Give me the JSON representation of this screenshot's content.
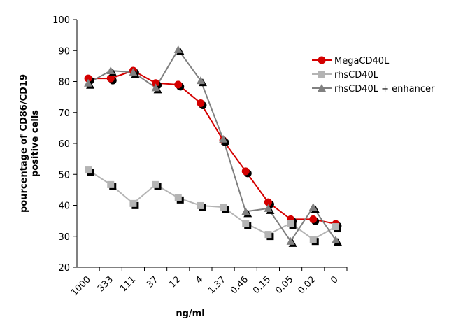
{
  "chart_data": {
    "type": "line",
    "x_label": "ng/ml",
    "y_label": [
      "pourcentage of CD86/CD19",
      "positive cells"
    ],
    "categories": [
      "1000",
      "333",
      "111",
      "37",
      "12",
      "4",
      "1.37",
      "0.46",
      "0.15",
      "0.05",
      "0.02",
      "0"
    ],
    "series": [
      {
        "name": "MegaCD40L",
        "color": "#d40000",
        "marker": "circle",
        "values": [
          81,
          81,
          83.5,
          79.5,
          79,
          73,
          61,
          51,
          41,
          35.5,
          35.5,
          34
        ]
      },
      {
        "name": "rhsCD40L",
        "color": "#b4b4b4",
        "marker": "square",
        "values": [
          51.4,
          46.7,
          40.6,
          46.7,
          42.4,
          39.9,
          39.4,
          34.2,
          30.6,
          34.2,
          29,
          33.1
        ]
      },
      {
        "name": "rhsCD40L + enhancer",
        "color": "#808080",
        "marker": "triangle",
        "values": [
          79.5,
          83.5,
          83,
          78,
          90.3,
          80.3,
          61.4,
          38,
          39,
          28.4,
          39.4,
          28.8
        ]
      }
    ],
    "ylim": [
      20,
      100
    ],
    "yticks": [
      20,
      30,
      40,
      50,
      60,
      70,
      80,
      90,
      100
    ],
    "legend": "right",
    "grid": false
  }
}
